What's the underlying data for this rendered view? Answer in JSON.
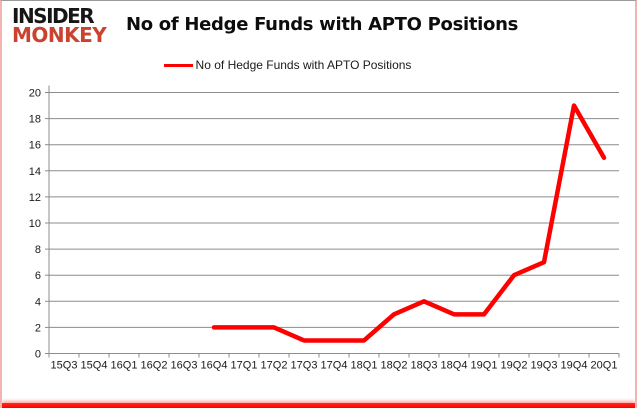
{
  "branding": {
    "logo_line1": "INSIDER",
    "logo_line2": "MONKEY",
    "logo_top_color": "#161616",
    "logo_bottom_color": "#c9432f"
  },
  "header": {
    "title": "No of Hedge Funds with APTO Positions"
  },
  "legend": {
    "label": "No of Hedge Funds with APTO Positions",
    "marker_color": "#ff0000"
  },
  "chart_data": {
    "type": "line",
    "title": "No of Hedge Funds with APTO Positions",
    "categories": [
      "15Q3",
      "15Q4",
      "16Q1",
      "16Q2",
      "16Q3",
      "16Q4",
      "17Q1",
      "17Q2",
      "17Q3",
      "17Q4",
      "18Q1",
      "18Q2",
      "18Q3",
      "18Q4",
      "19Q1",
      "19Q2",
      "19Q3",
      "19Q4",
      "20Q1"
    ],
    "series": [
      {
        "name": "No of Hedge Funds with APTO Positions",
        "color": "#ff0000",
        "values": [
          null,
          null,
          null,
          null,
          null,
          2,
          2,
          2,
          1,
          1,
          1,
          3,
          4,
          3,
          3,
          6,
          7,
          19,
          15
        ]
      }
    ],
    "xlabel": "",
    "ylabel": "",
    "ylim": [
      0,
      20
    ],
    "ytick_step": 2,
    "yticks": [
      0,
      2,
      4,
      6,
      8,
      10,
      12,
      14,
      16,
      18,
      20
    ],
    "grid": "horizontal-on",
    "gridline_color": "#8c8c8c",
    "axis_color": "#8c8c8c",
    "legend_position": "top-center"
  }
}
